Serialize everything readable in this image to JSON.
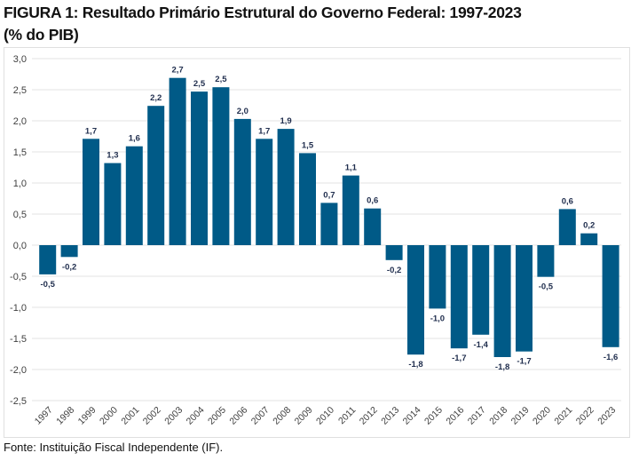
{
  "title_line1": "FIGURA 1: Resultado Primário Estrutural do Governo Federal: 1997-2023",
  "title_line2": "(% do PIB)",
  "source": "Fonte: Instituição Fiscal Independente (IF).",
  "colors": {
    "bar": "#005a87",
    "label": "#1f2d4d",
    "grid": "#e3e3e3",
    "axis_text": "#404040"
  },
  "chart_data": {
    "type": "bar",
    "title": "FIGURA 1: Resultado Primário Estrutural do Governo Federal: 1997-2023 (% do PIB)",
    "xlabel": "",
    "ylabel": "% do PIB",
    "ylim": [
      -2.5,
      3.0
    ],
    "yticks": [
      3.0,
      2.5,
      2.0,
      1.5,
      1.0,
      0.5,
      0.0,
      -0.5,
      -1.0,
      -1.5,
      -2.0,
      -2.5
    ],
    "ytick_labels": [
      "3,0",
      "2,5",
      "2,0",
      "1,5",
      "1,0",
      "0,5",
      "0,0",
      "-0,5",
      "-1,0",
      "-1,5",
      "-2,0",
      "-2,5"
    ],
    "grid": true,
    "categories": [
      "1997",
      "1998",
      "1999",
      "2000",
      "2001",
      "2002",
      "2003",
      "2004",
      "2005",
      "2006",
      "2007",
      "2008",
      "2009",
      "2010",
      "2011",
      "2012",
      "2013",
      "2014",
      "2015",
      "2016",
      "2017",
      "2018",
      "2019",
      "2020",
      "2021",
      "2022",
      "2023"
    ],
    "values": [
      -0.47,
      -0.19,
      1.71,
      1.32,
      1.59,
      2.24,
      2.69,
      2.47,
      2.54,
      2.03,
      1.71,
      1.87,
      1.48,
      0.68,
      1.12,
      0.59,
      -0.24,
      -1.76,
      -1.02,
      -1.66,
      -1.44,
      -1.8,
      -1.71,
      -0.51,
      0.58,
      0.19,
      -1.64
    ],
    "data_labels": [
      "-0,5",
      "-0,2",
      "1,7",
      "1,3",
      "1,6",
      "2,2",
      "2,7",
      "2,5",
      "2,5",
      "2,0",
      "1,7",
      "1,9",
      "1,5",
      "0,7",
      "1,1",
      "0,6",
      "-0,2",
      "-1,8",
      "-1,0",
      "-1,7",
      "-1,4",
      "-1,8",
      "-1,7",
      "-0,5",
      "0,6",
      "0,2",
      "-1,6"
    ]
  }
}
